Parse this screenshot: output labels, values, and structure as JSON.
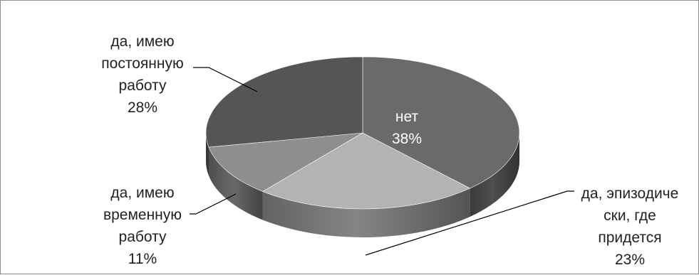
{
  "chart_data": {
    "type": "pie",
    "style": "3d-exploded-free",
    "title": "",
    "slices": [
      {
        "label_lines": [
          "нет"
        ],
        "value": 38,
        "value_label": "38%",
        "color": "#6a6a6a",
        "label_inside": true
      },
      {
        "label_lines": [
          "да, эпизодиче",
          "ски, где",
          "придется"
        ],
        "value": 23,
        "value_label": "23%",
        "color": "#b3b3b3",
        "label_inside": false
      },
      {
        "label_lines": [
          "да, имею",
          "временную",
          "работу"
        ],
        "value": 11,
        "value_label": "11%",
        "color": "#8e8e8e",
        "label_inside": false
      },
      {
        "label_lines": [
          "да, имею",
          "постоянную",
          "работу"
        ],
        "value": 28,
        "value_label": "28%",
        "color": "#555555",
        "label_inside": false
      }
    ]
  }
}
